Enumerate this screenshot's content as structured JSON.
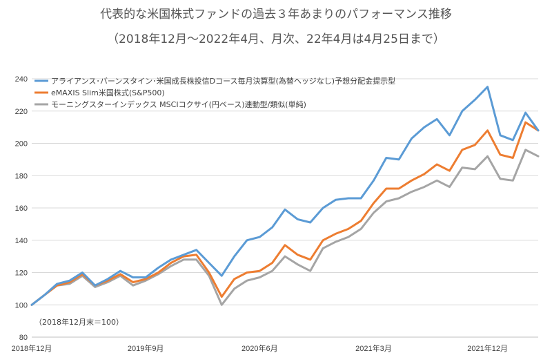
{
  "chart_data": {
    "type": "line",
    "title": "代表的な米国株式ファンドの過去３年あまりのパフォーマンス推移",
    "subtitle": "（2018年12月～2022年4月、月次、22年4月は4月25日まで）",
    "note": "（2018年12月末＝100）",
    "ylim": [
      80,
      240
    ],
    "yticks": [
      80,
      100,
      120,
      140,
      160,
      180,
      200,
      220,
      240
    ],
    "x": [
      "2018-12",
      "2019-01",
      "2019-02",
      "2019-03",
      "2019-04",
      "2019-05",
      "2019-06",
      "2019-07",
      "2019-08",
      "2019-09",
      "2019-10",
      "2019-11",
      "2019-12",
      "2020-01",
      "2020-02",
      "2020-03",
      "2020-04",
      "2020-05",
      "2020-06",
      "2020-07",
      "2020-08",
      "2020-09",
      "2020-10",
      "2020-11",
      "2020-12",
      "2021-01",
      "2021-02",
      "2021-03",
      "2021-04",
      "2021-05",
      "2021-06",
      "2021-07",
      "2021-08",
      "2021-09",
      "2021-10",
      "2021-11",
      "2021-12",
      "2022-01",
      "2022-02",
      "2022-03",
      "2022-04"
    ],
    "xtick_labels": [
      {
        "index": 0,
        "label": "2018年12月"
      },
      {
        "index": 9,
        "label": "2019年9月"
      },
      {
        "index": 18,
        "label": "2020年6月"
      },
      {
        "index": 27,
        "label": "2021年3月"
      },
      {
        "index": 36,
        "label": "2021年12月"
      }
    ],
    "legend_position": "top-left",
    "grid": true,
    "series": [
      {
        "name": "アライアンス･バーンスタイン･米国成長株投信Dコース毎月決算型(為替ヘッジなし)予想分配金提示型",
        "color": "#5b9bd5",
        "values": [
          100,
          106,
          113,
          115,
          120,
          112,
          116,
          121,
          117,
          117,
          123,
          128,
          131,
          134,
          126,
          118,
          130,
          140,
          142,
          148,
          159,
          153,
          151,
          160,
          165,
          166,
          166,
          177,
          191,
          190,
          203,
          210,
          215,
          205,
          220,
          227,
          235,
          205,
          202,
          219,
          208
        ]
      },
      {
        "name": "eMAXIS Slim米国株式(S&P500)",
        "color": "#ed7d31",
        "values": [
          100,
          106,
          112,
          114,
          119,
          112,
          115,
          119,
          114,
          116,
          120,
          126,
          130,
          131,
          120,
          105,
          116,
          120,
          121,
          126,
          137,
          131,
          128,
          140,
          144,
          147,
          152,
          163,
          172,
          172,
          177,
          181,
          187,
          183,
          196,
          199,
          208,
          193,
          191,
          213,
          208
        ]
      },
      {
        "name": "モーニングスターインデックス MSCIコクサイ(円ベース)連動型/類似(単純)",
        "color": "#a5a5a5",
        "values": [
          100,
          106,
          112,
          113,
          118,
          111,
          114,
          118,
          112,
          115,
          119,
          124,
          128,
          128,
          118,
          100,
          110,
          115,
          117,
          121,
          130,
          125,
          121,
          135,
          139,
          142,
          147,
          157,
          164,
          166,
          170,
          173,
          177,
          173,
          185,
          184,
          192,
          178,
          177,
          196,
          192
        ]
      }
    ]
  }
}
